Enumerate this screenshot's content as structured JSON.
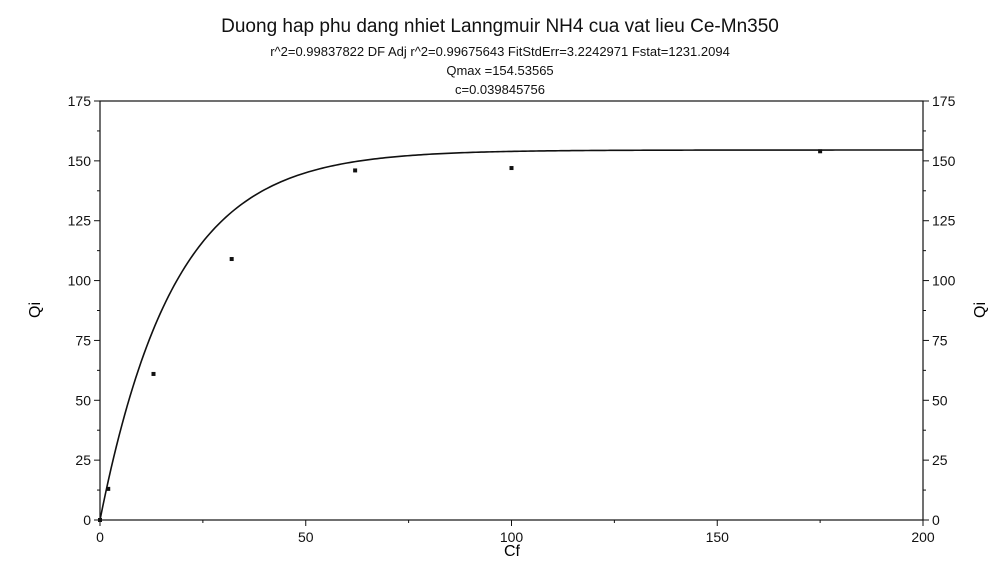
{
  "chart_data": {
    "type": "scatter",
    "title": "Duong hap phu dang nhiet Lanngmuir NH4 cua vat lieu Ce-Mn350",
    "subtitle_lines": [
      "r^2=0.99837822  DF Adj r^2=0.99675643  FitStdErr=3.2242971  Fstat=1231.2094",
      "Qmax =154.53565",
      "c=0.039845756"
    ],
    "xlabel": "Cf",
    "ylabel": "Qi",
    "ylabel_right": "Qi",
    "xlim": [
      0,
      200
    ],
    "ylim": [
      0,
      175
    ],
    "xticks": [
      0,
      50,
      100,
      150,
      200
    ],
    "yticks": [
      0,
      25,
      50,
      75,
      100,
      125,
      150,
      175
    ],
    "grid": false,
    "series": [
      {
        "kind": "points",
        "x": [
          0,
          2,
          13,
          32,
          62,
          100,
          175
        ],
        "y": [
          0,
          13,
          61,
          109,
          146,
          147,
          154
        ]
      },
      {
        "kind": "fit-curve",
        "model": "Langmuir",
        "qmax": 154.53565,
        "c": 0.039845756
      }
    ],
    "colors": {
      "points": "#111111",
      "curve": "#111111",
      "axes": "#111111"
    }
  }
}
